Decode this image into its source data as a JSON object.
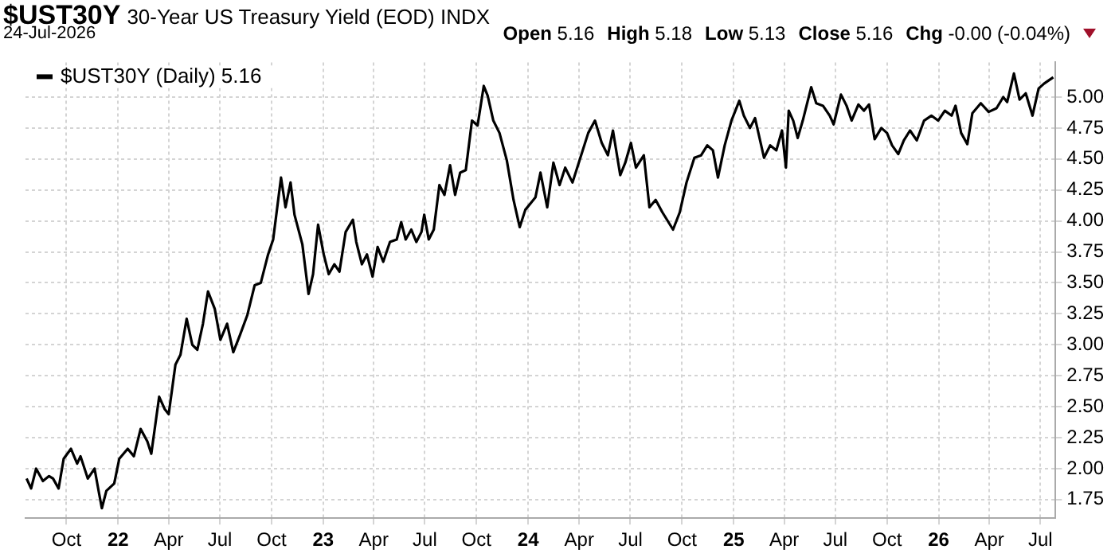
{
  "chart_data": {
    "type": "line",
    "title": "$UST30Y",
    "subtitle": "30-Year US Treasury Yield (EOD) INDX",
    "annotations": [
      "24-Jul-2026",
      "Open 5.16",
      "High 5.18",
      "Low 5.13",
      "Close 5.16",
      "Chg -0.00 (-0.04%)"
    ],
    "x": [
      "2021-07-22",
      "2021-07-30",
      "2021-08-08",
      "2021-08-20",
      "2021-08-31",
      "2021-09-07",
      "2021-09-17",
      "2021-09-26",
      "2021-10-09",
      "2021-10-20",
      "2021-10-26",
      "2021-11-08",
      "2021-11-20",
      "2021-11-28",
      "2021-12-03",
      "2021-12-11",
      "2021-12-25",
      "2022-01-03",
      "2022-01-18",
      "2022-01-29",
      "2022-02-10",
      "2022-02-22",
      "2022-03-01",
      "2022-03-15",
      "2022-03-25",
      "2022-04-01",
      "2022-04-13",
      "2022-04-22",
      "2022-05-03",
      "2022-05-13",
      "2022-05-22",
      "2022-06-01",
      "2022-06-10",
      "2022-06-22",
      "2022-07-02",
      "2022-07-14",
      "2022-07-25",
      "2022-08-06",
      "2022-08-19",
      "2022-09-01",
      "2022-09-12",
      "2022-09-25",
      "2022-10-04",
      "2022-10-18",
      "2022-10-26",
      "2022-11-04",
      "2022-11-11",
      "2022-11-25",
      "2022-12-06",
      "2022-12-14",
      "2022-12-23",
      "2023-01-02",
      "2023-01-11",
      "2023-01-21",
      "2023-01-30",
      "2023-02-10",
      "2023-02-23",
      "2023-03-01",
      "2023-03-11",
      "2023-03-20",
      "2023-03-30",
      "2023-04-08",
      "2023-04-18",
      "2023-04-30",
      "2023-05-12",
      "2023-05-20",
      "2023-05-28",
      "2023-06-07",
      "2023-06-16",
      "2023-06-25",
      "2023-06-30",
      "2023-07-08",
      "2023-07-17",
      "2023-07-27",
      "2023-08-05",
      "2023-08-15",
      "2023-08-24",
      "2023-09-02",
      "2023-09-12",
      "2023-09-23",
      "2023-10-03",
      "2023-10-14",
      "2023-10-21",
      "2023-10-31",
      "2023-11-11",
      "2023-11-24",
      "2023-12-06",
      "2023-12-17",
      "2023-12-27",
      "2024-01-14",
      "2024-01-23",
      "2024-02-04",
      "2024-02-15",
      "2024-02-26",
      "2024-03-07",
      "2024-03-20",
      "2024-04-03",
      "2024-04-17",
      "2024-04-29",
      "2024-05-11",
      "2024-05-22",
      "2024-05-31",
      "2024-06-13",
      "2024-06-22",
      "2024-07-02",
      "2024-07-11",
      "2024-07-25",
      "2024-08-04",
      "2024-08-15",
      "2024-08-27",
      "2024-09-15",
      "2024-09-27",
      "2024-10-09",
      "2024-10-23",
      "2024-11-04",
      "2024-11-15",
      "2024-11-25",
      "2024-12-04",
      "2024-12-16",
      "2024-12-28",
      "2025-01-11",
      "2025-01-19",
      "2025-01-30",
      "2025-02-08",
      "2025-02-24",
      "2025-03-07",
      "2025-03-18",
      "2025-03-28",
      "2025-04-04",
      "2025-04-09",
      "2025-04-17",
      "2025-04-25",
      "2025-05-04",
      "2025-05-19",
      "2025-05-28",
      "2025-06-09",
      "2025-06-21",
      "2025-06-28",
      "2025-07-11",
      "2025-07-21",
      "2025-07-30",
      "2025-08-11",
      "2025-08-21",
      "2025-08-30",
      "2025-09-09",
      "2025-09-21",
      "2025-10-01",
      "2025-10-10",
      "2025-10-21",
      "2025-10-31",
      "2025-11-11",
      "2025-11-23",
      "2025-12-06",
      "2025-12-19",
      "2025-12-31",
      "2026-01-12",
      "2026-01-24",
      "2026-01-31",
      "2026-02-10",
      "2026-02-21",
      "2026-03-02",
      "2026-03-17",
      "2026-03-31",
      "2026-04-14",
      "2026-04-26",
      "2026-05-03",
      "2026-05-15",
      "2026-05-25",
      "2026-06-05",
      "2026-06-17",
      "2026-06-28",
      "2026-07-08",
      "2026-07-24"
    ],
    "series": [
      {
        "name": "$UST30Y (Daily) 5.16",
        "color": "#000000",
        "values": [
          1.92,
          1.84,
          2.0,
          1.9,
          1.94,
          1.92,
          1.84,
          2.08,
          2.16,
          2.04,
          2.1,
          1.92,
          2.0,
          1.8,
          1.68,
          1.82,
          1.88,
          2.08,
          2.16,
          2.1,
          2.32,
          2.22,
          2.12,
          2.58,
          2.48,
          2.44,
          2.84,
          2.92,
          3.21,
          3.0,
          2.96,
          3.17,
          3.43,
          3.29,
          3.04,
          3.17,
          2.94,
          3.08,
          3.24,
          3.48,
          3.5,
          3.73,
          3.85,
          4.35,
          4.11,
          4.31,
          4.05,
          3.81,
          3.41,
          3.57,
          3.97,
          3.73,
          3.57,
          3.65,
          3.59,
          3.91,
          4.01,
          3.83,
          3.65,
          3.73,
          3.55,
          3.79,
          3.67,
          3.83,
          3.85,
          3.99,
          3.85,
          3.93,
          3.83,
          3.91,
          4.05,
          3.85,
          3.93,
          4.29,
          4.21,
          4.45,
          4.21,
          4.39,
          4.41,
          4.81,
          4.77,
          5.09,
          5.01,
          4.81,
          4.71,
          4.49,
          4.17,
          3.95,
          4.09,
          4.19,
          4.39,
          4.11,
          4.47,
          4.29,
          4.43,
          4.31,
          4.51,
          4.71,
          4.81,
          4.63,
          4.53,
          4.73,
          4.37,
          4.47,
          4.63,
          4.43,
          4.53,
          4.11,
          4.17,
          4.07,
          3.93,
          4.07,
          4.31,
          4.51,
          4.53,
          4.61,
          4.57,
          4.35,
          4.61,
          4.81,
          4.97,
          4.85,
          4.75,
          4.83,
          4.51,
          4.61,
          4.57,
          4.73,
          4.43,
          4.89,
          4.81,
          4.67,
          4.81,
          5.08,
          4.95,
          4.93,
          4.85,
          4.78,
          5.02,
          4.93,
          4.81,
          4.94,
          4.89,
          4.94,
          4.66,
          4.75,
          4.71,
          4.61,
          4.54,
          4.65,
          4.73,
          4.65,
          4.81,
          4.85,
          4.81,
          4.89,
          4.85,
          4.93,
          4.71,
          4.62,
          4.87,
          4.95,
          4.88,
          4.91,
          5.0,
          4.96,
          5.19,
          4.98,
          5.03,
          4.85,
          5.07,
          5.11,
          5.16
        ]
      }
    ],
    "xlim": [
      "2021-07-20",
      "2026-07-28"
    ],
    "ylim": [
      1.6,
      5.28
    ],
    "xticks": [
      {
        "value": "2021-10-01",
        "label": "Oct"
      },
      {
        "value": "2022-01-01",
        "label": "22"
      },
      {
        "value": "2022-04-01",
        "label": "Apr"
      },
      {
        "value": "2022-07-01",
        "label": "Jul"
      },
      {
        "value": "2022-10-01",
        "label": "Oct"
      },
      {
        "value": "2023-01-01",
        "label": "23"
      },
      {
        "value": "2023-04-01",
        "label": "Apr"
      },
      {
        "value": "2023-07-01",
        "label": "Jul"
      },
      {
        "value": "2023-10-01",
        "label": "Oct"
      },
      {
        "value": "2024-01-01",
        "label": "24"
      },
      {
        "value": "2024-04-01",
        "label": "Apr"
      },
      {
        "value": "2024-07-01",
        "label": "Jul"
      },
      {
        "value": "2024-10-01",
        "label": "Oct"
      },
      {
        "value": "2025-01-01",
        "label": "25"
      },
      {
        "value": "2025-04-01",
        "label": "Apr"
      },
      {
        "value": "2025-07-01",
        "label": "Jul"
      },
      {
        "value": "2025-10-01",
        "label": "Oct"
      },
      {
        "value": "2026-01-01",
        "label": "26"
      },
      {
        "value": "2026-04-01",
        "label": "Apr"
      },
      {
        "value": "2026-07-01",
        "label": "Jul"
      }
    ],
    "yticks": [
      {
        "value": 1.75,
        "label": "1.75"
      },
      {
        "value": 2,
        "label": "2.00"
      },
      {
        "value": 2.25,
        "label": "2.25"
      },
      {
        "value": 2.5,
        "label": "2.50"
      },
      {
        "value": 2.75,
        "label": "2.75"
      },
      {
        "value": 3,
        "label": "3.00"
      },
      {
        "value": 3.25,
        "label": "3.25"
      },
      {
        "value": 3.5,
        "label": "3.50"
      },
      {
        "value": 3.75,
        "label": "3.75"
      },
      {
        "value": 4,
        "label": "4.00"
      },
      {
        "value": 4.25,
        "label": "4.25"
      },
      {
        "value": 4.5,
        "label": "4.50"
      },
      {
        "value": 4.75,
        "label": "4.75"
      },
      {
        "value": 5,
        "label": "5.00"
      }
    ],
    "grid": true,
    "legend": "top left"
  }
}
